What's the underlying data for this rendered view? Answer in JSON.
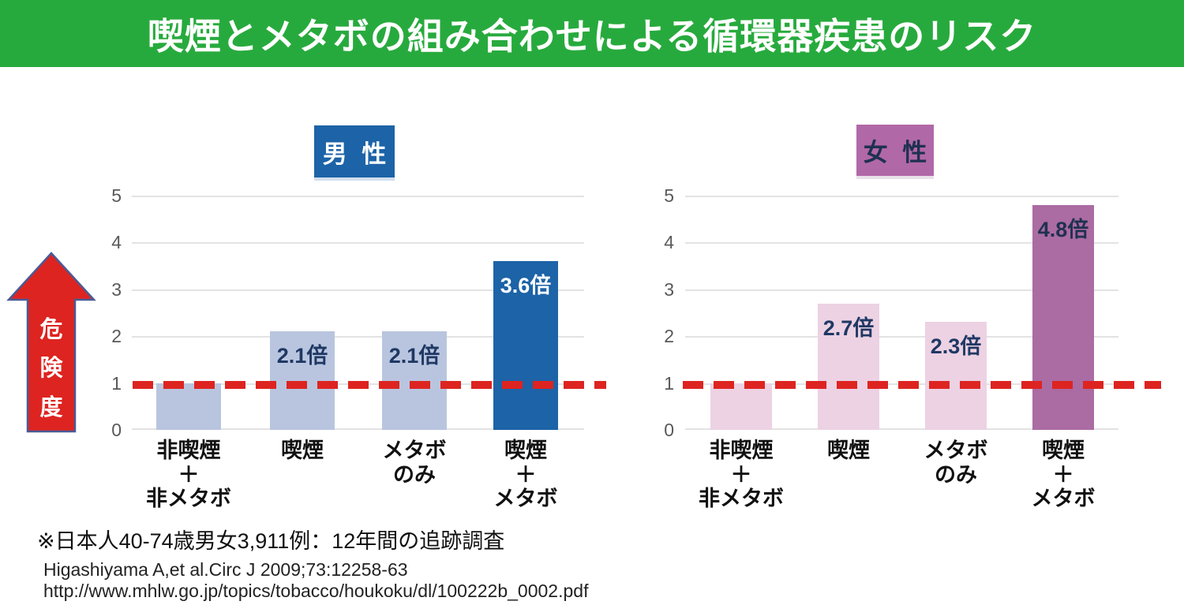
{
  "header": {
    "title": "喫煙とメタボの組み合わせによる循環器疾患のリスク",
    "bg_color": "#27aa3d",
    "text_color": "#ffffff"
  },
  "risk_arrow": {
    "label_chars": [
      "危",
      "険",
      "度"
    ],
    "color": "#dd2420",
    "outline_color": "#4a5a96"
  },
  "reference_line": {
    "value": 1,
    "style": "dashed",
    "color": "#dd2420"
  },
  "chart_data": [
    {
      "type": "bar",
      "title": "男 性",
      "categories": [
        [
          "非喫煙",
          "＋",
          "非メタボ"
        ],
        [
          "喫煙"
        ],
        [
          "メタボ",
          "のみ"
        ],
        [
          "喫煙",
          "＋",
          "メタボ"
        ]
      ],
      "values": [
        1.0,
        2.1,
        2.1,
        3.6
      ],
      "bar_labels": [
        "",
        "2.1倍",
        "2.1倍",
        "3.6倍"
      ],
      "ylabel": "危険度",
      "ylim": [
        0,
        5
      ],
      "yticks": [
        "5",
        "4",
        "3",
        "2",
        "1",
        "0"
      ],
      "grid": "horizontal",
      "baseline_value": 1,
      "colors": {
        "bar": "#b9c5df",
        "highlight_bar": "#1c63a7",
        "label_text": "#1f3864",
        "highlight_label": "#ffffff",
        "title_bg": "#1c63a7",
        "title_text": "#ffffff"
      }
    },
    {
      "type": "bar",
      "title": "女 性",
      "categories": [
        [
          "非喫煙",
          "＋",
          "非メタボ"
        ],
        [
          "喫煙"
        ],
        [
          "メタボ",
          "のみ"
        ],
        [
          "喫煙",
          "＋",
          "メタボ"
        ]
      ],
      "values": [
        1.0,
        2.7,
        2.3,
        4.8
      ],
      "bar_labels": [
        "",
        "2.7倍",
        "2.3倍",
        "4.8倍"
      ],
      "ylabel": "危険度",
      "ylim": [
        0,
        5
      ],
      "yticks": [
        "5",
        "4",
        "3",
        "2",
        "1",
        "0"
      ],
      "grid": "horizontal",
      "baseline_value": 1,
      "colors": {
        "bar": "#ecd2e3",
        "highlight_bar": "#ab6ba3",
        "label_text": "#1f3150",
        "highlight_label": "#1f3150",
        "title_bg": "#b168a7",
        "title_text": "#1f3150"
      }
    }
  ],
  "footnotes": {
    "note": "※日本人40-74歳男女3,911例：12年間の追跡調査",
    "citation": "Higashiyama A,et al.Circ J 2009;73:12258-63",
    "url": "http://www.mhlw.go.jp/topics/tobacco/houkoku/dl/100222b_0002.pdf"
  }
}
